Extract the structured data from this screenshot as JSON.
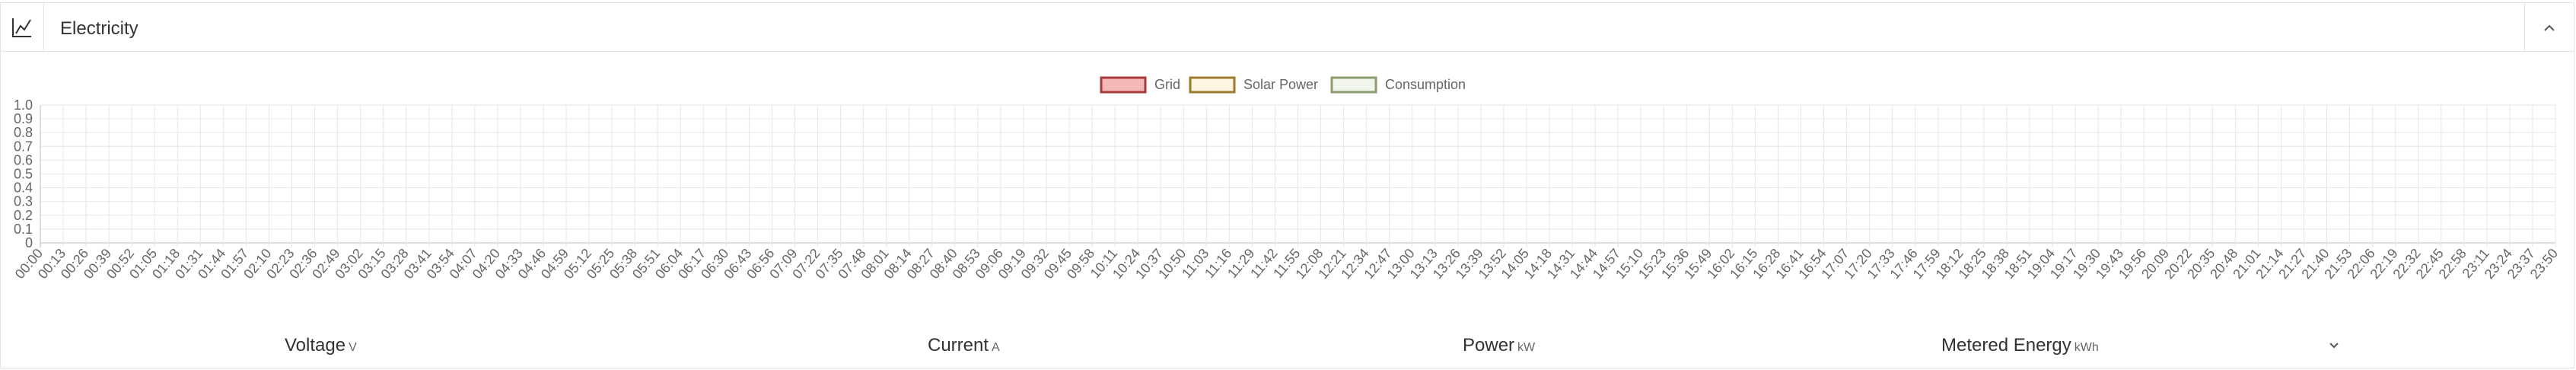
{
  "header": {
    "title": "Electricity"
  },
  "chart_data": {
    "type": "line",
    "series": [
      {
        "name": "Grid",
        "color": "#a83a3a",
        "fill": "#f5b8b8"
      },
      {
        "name": "Solar Power",
        "color": "#9c7c2c",
        "fill": "#fdf5e2"
      },
      {
        "name": "Consumption",
        "color": "#8c9c6c",
        "fill": "#f2f5ec"
      }
    ],
    "categories": [
      "00:00",
      "00:13",
      "00:26",
      "00:39",
      "00:52",
      "01:05",
      "01:18",
      "01:31",
      "01:44",
      "01:57",
      "02:10",
      "02:23",
      "02:36",
      "02:49",
      "03:02",
      "03:15",
      "03:28",
      "03:41",
      "03:54",
      "04:07",
      "04:20",
      "04:33",
      "04:46",
      "04:59",
      "05:12",
      "05:25",
      "05:38",
      "05:51",
      "06:04",
      "06:17",
      "06:30",
      "06:43",
      "06:56",
      "07:09",
      "07:22",
      "07:35",
      "07:48",
      "08:01",
      "08:14",
      "08:27",
      "08:40",
      "08:53",
      "09:06",
      "09:19",
      "09:32",
      "09:45",
      "09:58",
      "10:11",
      "10:24",
      "10:37",
      "10:50",
      "11:03",
      "11:16",
      "11:29",
      "11:42",
      "11:55",
      "12:08",
      "12:21",
      "12:34",
      "12:47",
      "13:00",
      "13:13",
      "13:26",
      "13:39",
      "13:52",
      "14:05",
      "14:18",
      "14:31",
      "14:44",
      "14:57",
      "15:10",
      "15:23",
      "15:36",
      "15:49",
      "16:02",
      "16:15",
      "16:28",
      "16:41",
      "16:54",
      "17:07",
      "17:20",
      "17:33",
      "17:46",
      "17:59",
      "18:12",
      "18:25",
      "18:38",
      "18:51",
      "19:04",
      "19:17",
      "19:30",
      "19:43",
      "19:56",
      "20:09",
      "20:22",
      "20:35",
      "20:48",
      "21:01",
      "21:14",
      "21:27",
      "21:40",
      "21:53",
      "22:06",
      "22:19",
      "22:32",
      "22:45",
      "22:58",
      "23:11",
      "23:24",
      "23:37",
      "23:50"
    ],
    "ylim": [
      0,
      1
    ],
    "yticks": [
      0,
      0.1,
      0.2,
      0.3,
      0.4,
      0.5,
      0.6,
      0.7,
      0.8,
      0.9,
      {
        "value": 1,
        "label": "1.0"
      }
    ],
    "grid": true,
    "legend": "top"
  },
  "tabs": [
    {
      "label": "Voltage",
      "unit": "V"
    },
    {
      "label": "Current",
      "unit": "A"
    },
    {
      "label": "Power",
      "unit": "kW"
    },
    {
      "label": "Metered Energy",
      "unit": "kWh"
    }
  ]
}
